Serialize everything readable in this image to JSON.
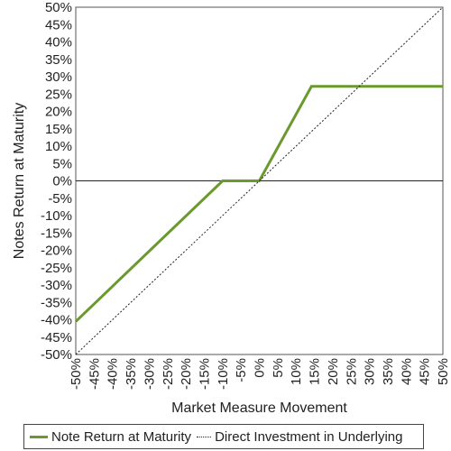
{
  "chart_data": {
    "type": "line",
    "title": "",
    "xlabel": "Market Measure Movement",
    "ylabel": "Notes Return at Maturity",
    "xlim": [
      -50,
      50
    ],
    "ylim": [
      -50,
      50
    ],
    "x_ticks": [
      "-50%",
      "-45%",
      "-40%",
      "-35%",
      "-30%",
      "-25%",
      "-20%",
      "-15%",
      "-10%",
      "-5%",
      "0%",
      "5%",
      "10%",
      "15%",
      "20%",
      "25%",
      "30%",
      "35%",
      "40%",
      "45%",
      "50%"
    ],
    "y_ticks": [
      "50%",
      "45%",
      "40%",
      "35%",
      "30%",
      "25%",
      "20%",
      "15%",
      "10%",
      "5%",
      "0%",
      "-5%",
      "-10%",
      "-15%",
      "-20%",
      "-25%",
      "-30%",
      "-35%",
      "-40%",
      "-45%",
      "-50%"
    ],
    "grid": false,
    "legend_position": "bottom",
    "series": [
      {
        "name": "Note Return at Maturity",
        "style": "solid",
        "color": "#6a9a2e",
        "x": [
          -50,
          -10,
          0,
          14.2,
          50
        ],
        "y": [
          -40.5,
          0,
          0,
          27.2,
          27.2
        ]
      },
      {
        "name": "Direct Investment in Underlying",
        "style": "dotted",
        "color": "#222222",
        "x": [
          -50,
          50
        ],
        "y": [
          -50,
          50
        ]
      }
    ]
  }
}
